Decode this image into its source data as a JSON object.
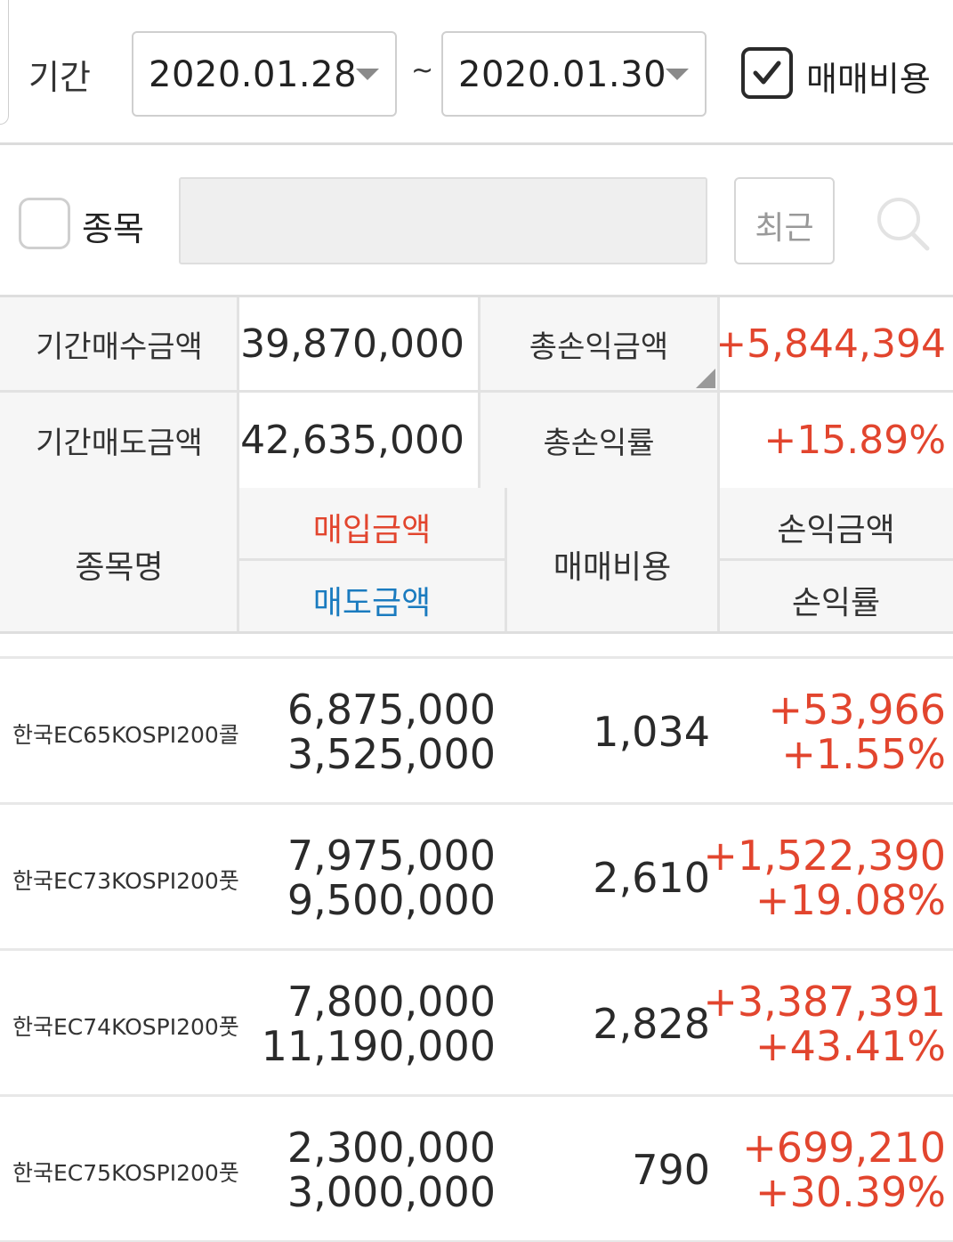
{
  "period": {
    "label": "기간",
    "start_date": "2020.01.28",
    "separator": "~",
    "end_date": "2020.01.30",
    "fee_checkbox_checked": true,
    "fee_label": "매매비용"
  },
  "stock_filter": {
    "checkbox_checked": false,
    "label": "종목",
    "input_value": "",
    "recent_button": "최근"
  },
  "summary": {
    "buy_total_label": "기간매수금액",
    "buy_total_value": "39,870,000",
    "sell_total_label": "기간매도금액",
    "sell_total_value": "42,635,000",
    "profit_total_label": "총손익금액",
    "profit_total_value": "+5,844,394",
    "profit_rate_label": "총손익률",
    "profit_rate_value": "+15.89%"
  },
  "columns": {
    "name": "종목명",
    "buy_amount": "매입금액",
    "sell_amount": "매도금액",
    "fee": "매매비용",
    "profit": "손익금액",
    "rate": "손익률"
  },
  "rows": [
    {
      "name": "한국EC65KOSPI200콜",
      "buy": "6,875,000",
      "sell": "3,525,000",
      "fee": "1,034",
      "profit": "+53,966",
      "rate": "+1.55%"
    },
    {
      "name": "한국EC73KOSPI200풋",
      "buy": "7,975,000",
      "sell": "9,500,000",
      "fee": "2,610",
      "profit": "+1,522,390",
      "rate": "+19.08%"
    },
    {
      "name": "한국EC74KOSPI200풋",
      "buy": "7,800,000",
      "sell": "11,190,000",
      "fee": "2,828",
      "profit": "+3,387,391",
      "rate": "+43.41%"
    },
    {
      "name": "한국EC75KOSPI200풋",
      "buy": "2,300,000",
      "sell": "3,000,000",
      "fee": "790",
      "profit": "+699,210",
      "rate": "+30.39%"
    }
  ],
  "colors": {
    "profit_red": "#e2452e",
    "sell_blue": "#1a7bbf",
    "header_bg": "#f6f6f6",
    "input_bg": "#efefef"
  },
  "icons": {
    "checkmark": "check-icon",
    "search": "search-icon",
    "dropdown": "chevron-down-icon",
    "sort": "corner-triangle-icon"
  }
}
